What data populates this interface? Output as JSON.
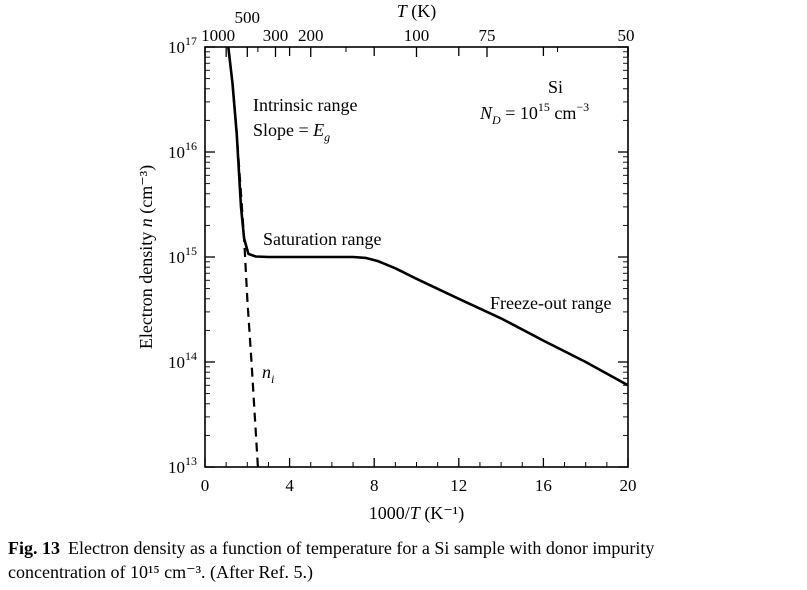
{
  "chart_data": {
    "type": "line",
    "xlabel": "1000/T",
    "xlabel_unit": "(K⁻¹)",
    "ylabel": "Electron density n (cm⁻³)",
    "top_axis_label": "T (K)",
    "xlim": [
      0,
      20
    ],
    "ylim": [
      10000000000000.0,
      1e+17
    ],
    "yscale": "log",
    "grid": false,
    "x_ticks": [
      0,
      4,
      8,
      12,
      16,
      20
    ],
    "x_minor_ticks": [
      1,
      2,
      3,
      5,
      6,
      7,
      9,
      10,
      11,
      13,
      14,
      15,
      17,
      18,
      19
    ],
    "y_ticks": [
      {
        "value": 10000000000000.0,
        "base": "10",
        "exp": "13"
      },
      {
        "value": 100000000000000.0,
        "base": "10",
        "exp": "14"
      },
      {
        "value": 1000000000000000.0,
        "base": "10",
        "exp": "15"
      },
      {
        "value": 1e+16,
        "base": "10",
        "exp": "16"
      },
      {
        "value": 1e+17,
        "base": "10",
        "exp": "17"
      }
    ],
    "top_ticks": [
      {
        "label": "1000",
        "T": 1000
      },
      {
        "label": "500",
        "T": 500
      },
      {
        "label": "300",
        "T": 300
      },
      {
        "label": "200",
        "T": 200
      },
      {
        "label": "100",
        "T": 100
      },
      {
        "label": "75",
        "T": 75
      },
      {
        "label": "50",
        "T": 50
      }
    ],
    "series": [
      {
        "style": "solid",
        "points": [
          [
            1.1,
            1e+17
          ],
          [
            1.3,
            4.5e+16
          ],
          [
            1.5,
            1.5e+16
          ],
          [
            1.7,
            3000000000000000.0
          ],
          [
            1.85,
            1500000000000000.0
          ],
          [
            2.05,
            1070000000000000.0
          ],
          [
            2.4,
            1010000000000000.0
          ],
          [
            3.0,
            1000000000000000.0
          ],
          [
            5.0,
            1000000000000000.0
          ],
          [
            7.0,
            1000000000000000.0
          ],
          [
            7.6,
            980000000000000.0
          ],
          [
            8.2,
            910000000000000.0
          ],
          [
            9.0,
            780000000000000.0
          ],
          [
            10.0,
            620000000000000.0
          ],
          [
            12.0,
            400000000000000.0
          ],
          [
            14.0,
            260000000000000.0
          ],
          [
            16.0,
            160000000000000.0
          ],
          [
            18.0,
            100000000000000.0
          ],
          [
            20.0,
            60000000000000.0
          ]
        ]
      },
      {
        "name": "n_i",
        "style": "dashed",
        "points": [
          [
            1.3,
            4.5e+16
          ],
          [
            1.5,
            1.5e+16
          ],
          [
            1.7,
            4000000000000000.0
          ],
          [
            1.85,
            1500000000000000.0
          ],
          [
            2.0,
            400000000000000.0
          ],
          [
            2.2,
            100000000000000.0
          ],
          [
            2.5,
            10000000000000.0
          ]
        ]
      }
    ],
    "annotations": {
      "intrinsic_line1": "Intrinsic range",
      "intrinsic_line2_prefix": "Slope = ",
      "intrinsic_line2_var": "E",
      "intrinsic_line2_sub": "g",
      "saturation": "Saturation range",
      "freezeout": "Freeze-out range",
      "ni_var": "n",
      "ni_sub": "i",
      "material": "Si",
      "doping_var": "N",
      "doping_sub": "D",
      "doping_mid": " = 10",
      "doping_exp": "15",
      "doping_unit": " cm",
      "doping_unit_exp": "−3"
    }
  },
  "caption": {
    "label": "Fig. 13",
    "line1": "Electron density as a function of temperature for a Si sample with donor impurity",
    "line2": "concentration of 10¹⁵ cm⁻³. (After Ref. 5.)"
  }
}
